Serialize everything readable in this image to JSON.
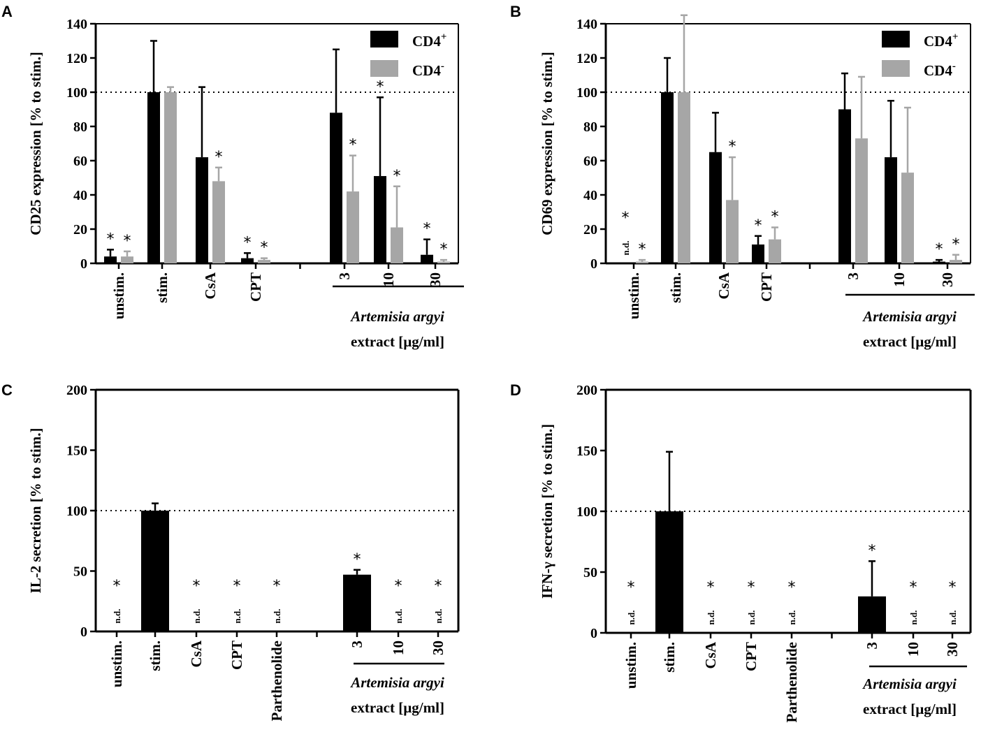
{
  "chart_data": [
    {
      "panel": "A",
      "type": "bar",
      "ylabel": "CD25 expression [% to stim.]",
      "ylim": [
        0,
        140
      ],
      "yticks": [
        0,
        20,
        40,
        60,
        80,
        100,
        120,
        140
      ],
      "reference_line": 100,
      "categories": [
        "unstim.",
        "stim.",
        "CsA",
        "CPT",
        "3",
        "10",
        "30"
      ],
      "group_label": [
        "Artemisia argyi",
        "extract [µg/ml]"
      ],
      "legend": [
        {
          "name": "CD4",
          "sup": "+",
          "color": "#000000"
        },
        {
          "name": "CD4",
          "sup": "-",
          "color": "#a6a6a6"
        }
      ],
      "series": [
        {
          "name": "CD4+",
          "color": "#000000",
          "values": [
            4,
            100,
            62,
            3,
            88,
            51,
            5
          ],
          "errors": [
            4,
            30,
            41,
            3,
            37,
            46,
            9
          ],
          "marks": [
            "*",
            "",
            "",
            "*",
            "",
            "*",
            "*"
          ]
        },
        {
          "name": "CD4-",
          "color": "#a6a6a6",
          "values": [
            4,
            100,
            48,
            2,
            42,
            21,
            1
          ],
          "errors": [
            3,
            3,
            8,
            1,
            21,
            24,
            1
          ],
          "marks": [
            "*",
            "",
            "*",
            "*",
            "*",
            "*",
            "*"
          ]
        }
      ]
    },
    {
      "panel": "B",
      "type": "bar",
      "ylabel": "CD69 expression [% to stim.]",
      "ylim": [
        0,
        140
      ],
      "yticks": [
        0,
        20,
        40,
        60,
        80,
        100,
        120,
        140
      ],
      "reference_line": 100,
      "categories": [
        "unstim.",
        "stim.",
        "CsA",
        "CPT",
        "3",
        "10",
        "30"
      ],
      "group_label": [
        "Artemisia argyi",
        "extract [µg/ml]"
      ],
      "legend": [
        {
          "name": "CD4",
          "sup": "+",
          "color": "#000000"
        },
        {
          "name": "CD4",
          "sup": "-",
          "color": "#a6a6a6"
        }
      ],
      "series": [
        {
          "name": "CD4+",
          "color": "#000000",
          "values": [
            0,
            100,
            65,
            11,
            90,
            62,
            1
          ],
          "errors": [
            0,
            20,
            23,
            5,
            21,
            33,
            1
          ],
          "marks": [
            "n.d.*",
            "",
            "",
            "*",
            "",
            "",
            "*"
          ]
        },
        {
          "name": "CD4-",
          "color": "#a6a6a6",
          "values": [
            1,
            100,
            37,
            14,
            73,
            53,
            2
          ],
          "errors": [
            1,
            45,
            25,
            7,
            36,
            38,
            3
          ],
          "marks": [
            "*",
            "",
            "*",
            "*",
            "",
            "",
            "*"
          ]
        }
      ]
    },
    {
      "panel": "C",
      "type": "bar",
      "ylabel": "IL-2 secretion [% to stim.]",
      "ylim": [
        0,
        200
      ],
      "yticks": [
        0,
        50,
        100,
        150,
        200
      ],
      "reference_line": 100,
      "categories": [
        "unstim.",
        "stim.",
        "CsA",
        "CPT",
        "Parthenolide",
        "3",
        "10",
        "30"
      ],
      "group_label": [
        "Artemisia argyi",
        "extract [µg/ml]"
      ],
      "series": [
        {
          "name": "IL-2",
          "color": "#000000",
          "values": [
            0,
            100,
            0,
            0,
            0,
            47,
            0,
            0
          ],
          "errors": [
            0,
            6,
            0,
            0,
            0,
            4,
            0,
            0
          ],
          "marks": [
            "n.d.*",
            "",
            "n.d.*",
            "n.d.*",
            "n.d.*",
            "*",
            "n.d.*",
            "n.d.*"
          ]
        }
      ]
    },
    {
      "panel": "D",
      "type": "bar",
      "ylabel": "IFN-γ secretion [% to stim.]",
      "ylim": [
        0,
        200
      ],
      "yticks": [
        0,
        50,
        100,
        150,
        200
      ],
      "reference_line": 100,
      "categories": [
        "unstim.",
        "stim.",
        "CsA",
        "CPT",
        "Parthenolide",
        "3",
        "10",
        "30"
      ],
      "group_label": [
        "Artemisia argyi",
        "extract [µg/ml]"
      ],
      "series": [
        {
          "name": "IFN-γ",
          "color": "#000000",
          "values": [
            0,
            100,
            0,
            0,
            0,
            30,
            0,
            0
          ],
          "errors": [
            0,
            49,
            0,
            0,
            0,
            29,
            0,
            0
          ],
          "marks": [
            "n.d.*",
            "",
            "n.d.*",
            "n.d.*",
            "n.d.*",
            "*",
            "n.d.*",
            "n.d.*"
          ]
        }
      ]
    }
  ]
}
